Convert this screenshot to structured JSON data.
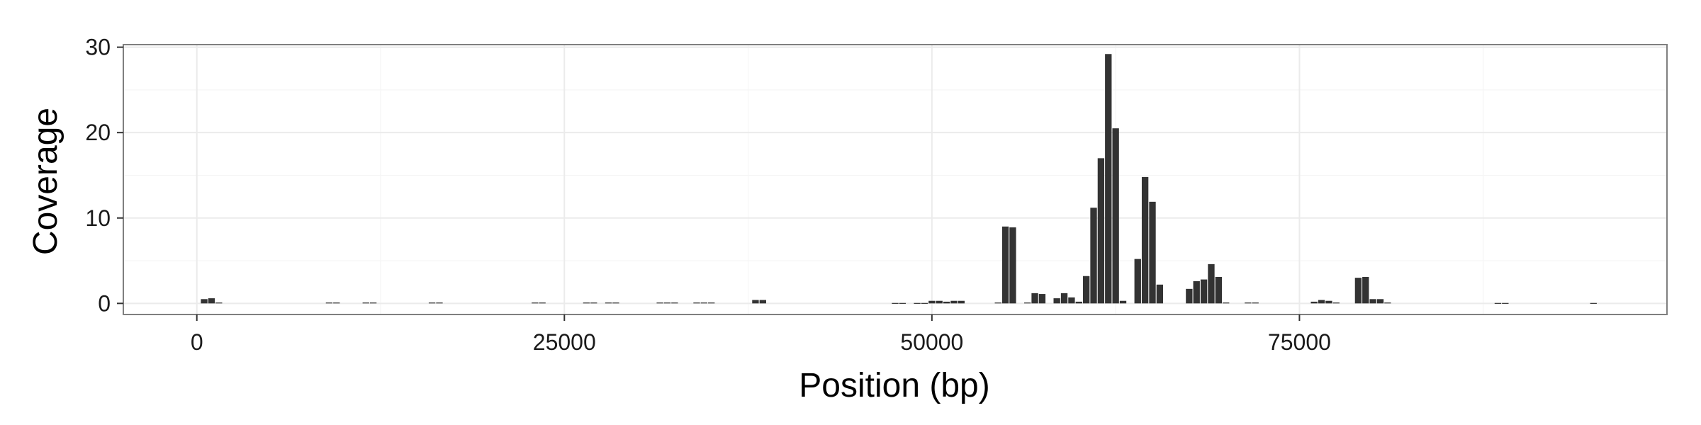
{
  "chart_data": {
    "type": "bar",
    "title": "",
    "xlabel": "Position (bp)",
    "ylabel": "Coverage",
    "xlim": [
      -5000,
      100000
    ],
    "ylim": [
      -1.3,
      30.3
    ],
    "bin_width": 500,
    "x_ticks": [
      0,
      25000,
      50000,
      75000
    ],
    "x_tick_labels": [
      "0",
      "25000",
      "50000",
      "75000"
    ],
    "y_ticks": [
      0,
      10,
      20,
      30
    ],
    "y_tick_labels": [
      "0",
      "10",
      "20",
      "30"
    ],
    "grid": true,
    "legend": "none",
    "bar_color": "#333333",
    "panel_border_color": "#7f7f7f",
    "grid_major_color": "#ebebeb",
    "grid_minor_color": "#f5f5f5",
    "x": [
      500,
      1000,
      1500,
      9000,
      9500,
      11500,
      12000,
      16000,
      16500,
      23000,
      23500,
      26500,
      27000,
      28000,
      28500,
      31500,
      32000,
      32500,
      34000,
      34500,
      35000,
      38000,
      38500,
      47500,
      48000,
      49000,
      49500,
      50000,
      50500,
      51000,
      51500,
      52000,
      54500,
      55000,
      55500,
      56500,
      57000,
      57500,
      58500,
      59000,
      59500,
      60000,
      60500,
      61000,
      61500,
      62000,
      62500,
      63000,
      64000,
      64500,
      65000,
      65500,
      67500,
      68000,
      68500,
      69000,
      69500,
      70000,
      71500,
      72000,
      76000,
      76500,
      77000,
      77500,
      79000,
      79500,
      80000,
      80500,
      81000,
      88500,
      89000,
      95000
    ],
    "values": [
      0.5,
      0.6,
      0.1,
      0.1,
      0.1,
      0.1,
      0.1,
      0.1,
      0.1,
      0.1,
      0.1,
      0.1,
      0.1,
      0.1,
      0.1,
      0.1,
      0.1,
      0.1,
      0.1,
      0.1,
      0.1,
      0.4,
      0.4,
      0.05,
      0.05,
      0.05,
      0.05,
      0.3,
      0.3,
      0.2,
      0.3,
      0.3,
      0.1,
      9.0,
      8.9,
      0.1,
      1.2,
      1.1,
      0.6,
      1.2,
      0.7,
      0.2,
      3.2,
      11.2,
      17.0,
      29.2,
      20.5,
      0.3,
      5.2,
      14.8,
      11.9,
      2.2,
      1.7,
      2.6,
      2.8,
      4.6,
      3.1,
      0.1,
      0.1,
      0.1,
      0.2,
      0.4,
      0.3,
      0.1,
      3.0,
      3.1,
      0.5,
      0.5,
      0.1,
      0.05,
      0.05,
      0.05
    ]
  }
}
